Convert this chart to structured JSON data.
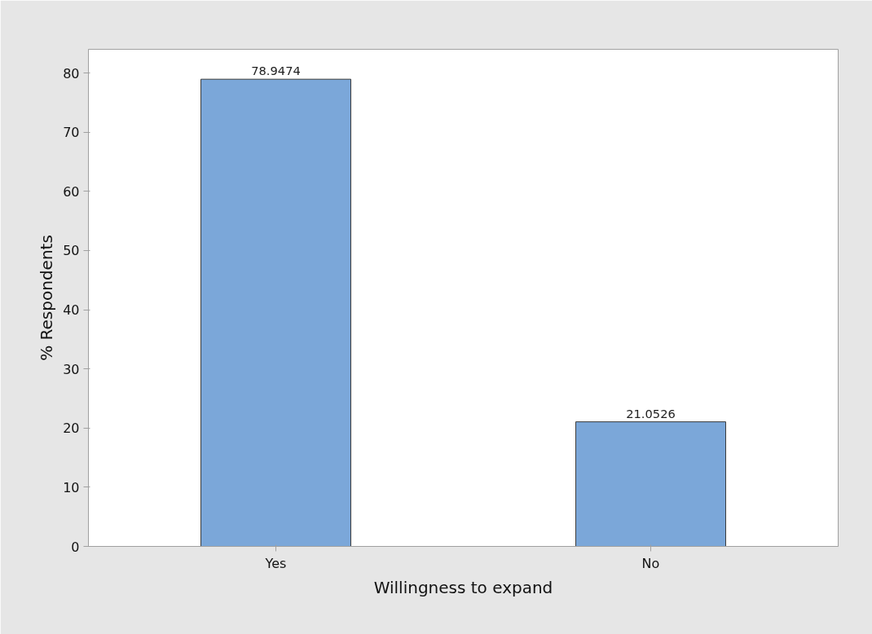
{
  "chart_data": {
    "type": "bar",
    "categories": [
      "Yes",
      "No"
    ],
    "values": [
      78.9474,
      21.0526
    ],
    "color": "#7ba7d9",
    "ylim": [
      0,
      84
    ],
    "yticks": [
      0,
      10,
      20,
      30,
      40,
      50,
      60,
      70,
      80
    ],
    "xlabel": "Willingness to expand",
    "ylabel": "% Respondents",
    "data_labels": true
  }
}
